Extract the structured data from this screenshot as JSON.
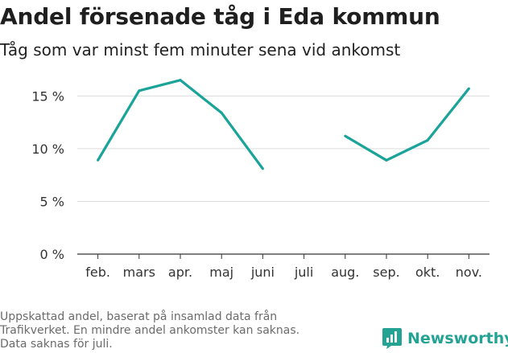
{
  "header": {
    "title": "Andel försenade tåg i Eda kommun",
    "subtitle": "Tåg som var minst fem minuter sena vid ankomst"
  },
  "chart_data": {
    "type": "line",
    "categories": [
      "feb.",
      "mars",
      "apr.",
      "maj",
      "juni",
      "juli",
      "aug.",
      "sep.",
      "okt.",
      "nov."
    ],
    "series": [
      {
        "values": [
          8.9,
          15.5,
          16.5,
          13.4,
          8.1,
          null,
          11.2,
          8.9,
          10.8,
          15.7
        ]
      }
    ],
    "y_ticks": [
      0,
      5,
      10,
      15
    ],
    "y_tick_labels": [
      "0 %",
      "5 %",
      "10 %",
      "15 %"
    ],
    "ylim": [
      0,
      18
    ],
    "grid": true,
    "line_color": "#1aa399"
  },
  "footnote": {
    "lines": [
      "Uppskattad andel, baserat på insamlad data från",
      "Trafikverket. En mindre andel ankomster kan saknas.",
      "Data saknas för juli."
    ]
  },
  "brand": {
    "name": "Newsworthy",
    "icon": "newsworthy-logo-icon",
    "color": "#24a394"
  }
}
